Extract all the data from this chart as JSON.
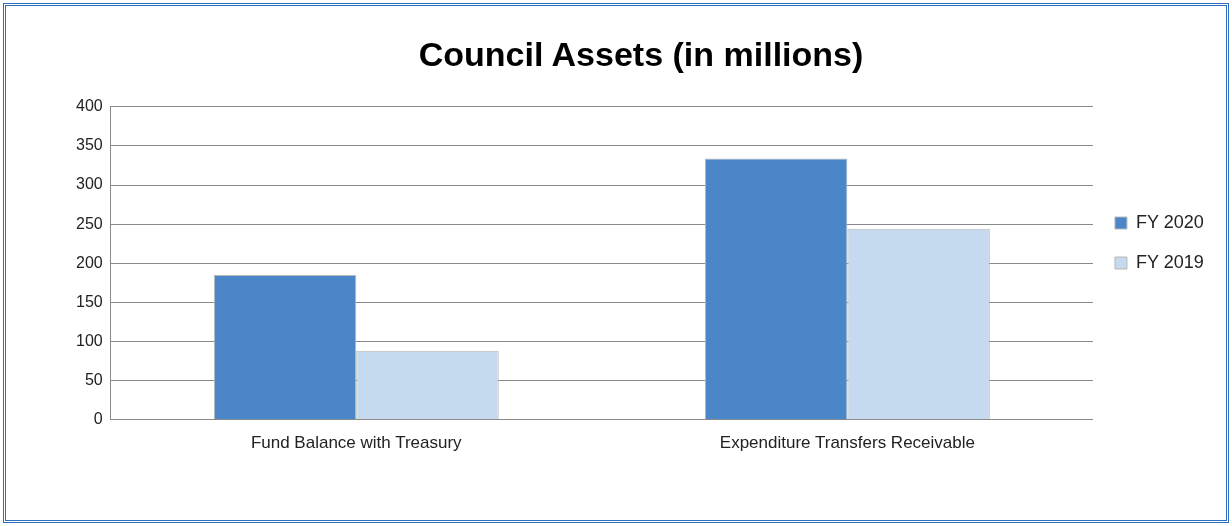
{
  "chart_data": {
    "type": "bar",
    "title": "Council Assets (in millions)",
    "categories": [
      "Fund Balance with Treasury",
      "Expenditure Transfers Receivable"
    ],
    "series": [
      {
        "name": "FY 2020",
        "color": "#4a86c8",
        "values": [
          185,
          334
        ]
      },
      {
        "name": "FY 2019",
        "color": "#c5daee",
        "values": [
          88,
          244
        ]
      }
    ],
    "ylim": [
      0,
      400
    ],
    "yticks": [
      0,
      50,
      100,
      150,
      200,
      250,
      300,
      350,
      400
    ],
    "grid": "y",
    "legend": "right"
  }
}
